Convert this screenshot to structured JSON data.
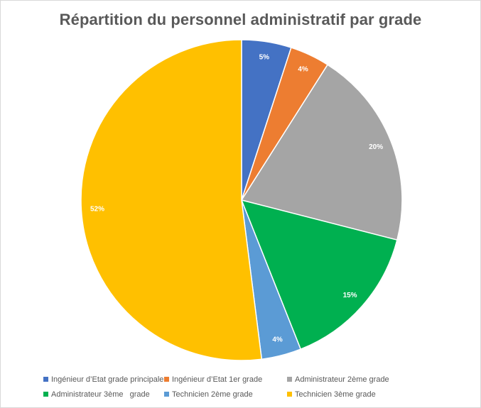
{
  "chart_data": {
    "type": "pie",
    "title": "Répartition du personnel administratif par grade",
    "legend_position": "bottom",
    "slices": [
      {
        "label": "Ingénieur d’Etat grade principale",
        "value": 5,
        "data_label": "5%",
        "color": "#4472C4"
      },
      {
        "label": "Ingénieur d’Etat 1er grade",
        "value": 4,
        "data_label": "4%",
        "color": "#ED7D31"
      },
      {
        "label": "Administrateur 2ème grade",
        "value": 20,
        "data_label": "20%",
        "color": "#A5A5A5"
      },
      {
        "label": "Administrateur 3ème   grade",
        "value": 15,
        "data_label": "15%",
        "color": "#00B050"
      },
      {
        "label": "Technicien 2ème grade",
        "value": 4,
        "data_label": "4%",
        "color": "#5B9BD5"
      },
      {
        "label": "Technicien 3ème grade",
        "value": 52,
        "data_label": "52%",
        "color": "#FFC000"
      }
    ]
  }
}
